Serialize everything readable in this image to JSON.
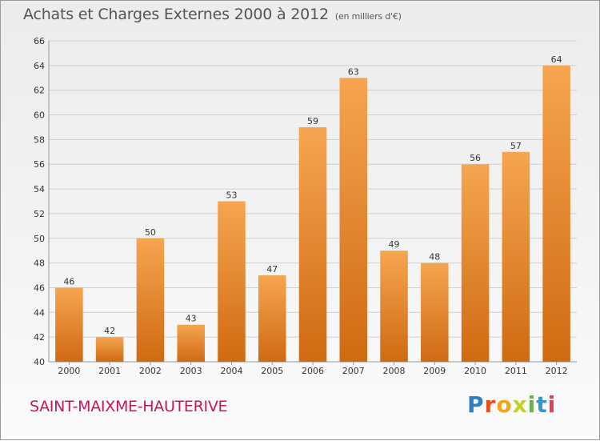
{
  "header": {
    "title": "Achats et Charges Externes 2000 à 2012",
    "unit_note": "(en milliers d'€)"
  },
  "footer": {
    "commune": "SAINT-MAIXME-HAUTERIVE",
    "brand_letters": [
      "P",
      "r",
      "o",
      "x",
      "i",
      "t",
      "i"
    ],
    "brand_colors": [
      "#2e7fc2",
      "#e8501c",
      "#f2a51a",
      "#c4d12a",
      "#6ab04c",
      "#2e9ad0",
      "#e23c5a"
    ]
  },
  "colors": {
    "bar_top": "#f6a550",
    "bar_bottom": "#cf6a12",
    "grid": "#cfcfcf",
    "axis_text": "#333333",
    "commune": "#c2185b"
  },
  "chart_data": {
    "type": "bar",
    "title": "Achats et Charges Externes 2000 à 2012",
    "subtitle": "(en milliers d'€)",
    "xlabel": "",
    "ylabel": "",
    "categories": [
      "2000",
      "2001",
      "2002",
      "2003",
      "2004",
      "2005",
      "2006",
      "2007",
      "2008",
      "2009",
      "2010",
      "2011",
      "2012"
    ],
    "values": [
      46,
      42,
      50,
      43,
      53,
      47,
      59,
      63,
      49,
      48,
      56,
      57,
      64
    ],
    "ylim": [
      40,
      66
    ],
    "yticks": [
      40,
      42,
      44,
      46,
      48,
      50,
      52,
      54,
      56,
      58,
      60,
      62,
      64,
      66
    ],
    "grid": true,
    "legend": "none"
  }
}
